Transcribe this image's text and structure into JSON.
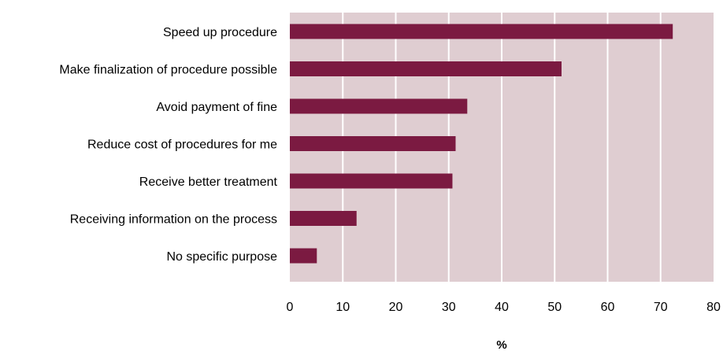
{
  "chart_data": {
    "type": "bar",
    "orientation": "horizontal",
    "categories": [
      "Speed up procedure",
      "Make finalization of procedure possible",
      "Avoid payment of fine",
      "Reduce cost of procedures for me",
      "Receive better treatment",
      "Receiving information on the process",
      "No specific purpose"
    ],
    "values": [
      72.3,
      51.3,
      33.5,
      31.3,
      30.7,
      12.6,
      5.1
    ],
    "title": "",
    "xlabel": "%",
    "ylabel": "",
    "xlim": [
      0,
      80
    ],
    "xticks": [
      "0",
      "10",
      "20",
      "30",
      "40",
      "50",
      "60",
      "70",
      "80"
    ],
    "grid": "vertical",
    "legend": "none",
    "colors": {
      "bar": "#7b1a41",
      "plot_background": "#dfcdd1",
      "gridline": "#ffffff"
    }
  }
}
